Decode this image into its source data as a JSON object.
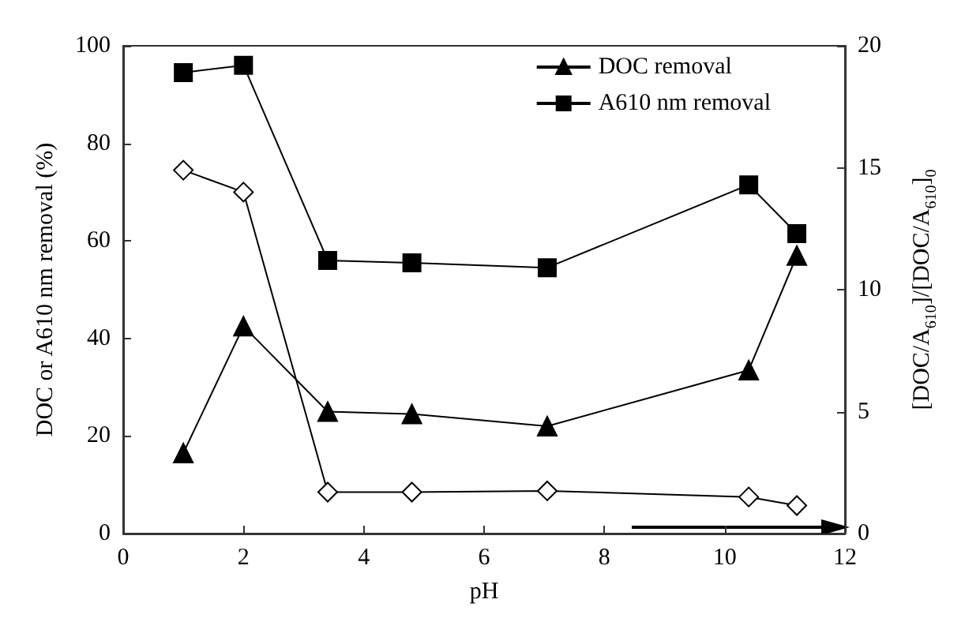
{
  "chart_data": {
    "type": "line",
    "xlabel": "pH",
    "ylabel": "DOC or A610 nm removal (%)",
    "y2label": "[DOC/A$_{610}$]/[DOC/A$_{610}$]$_{0}$",
    "x": [
      1.0,
      2.0,
      3.4,
      4.8,
      7.05,
      10.4,
      11.2
    ],
    "series": [
      {
        "name": "DOC removal",
        "color": "#000000",
        "marker": "triangle",
        "values": [
          16.5,
          42.5,
          25,
          24.5,
          22,
          33.5,
          57
        ]
      },
      {
        "name": "A610 nm removal",
        "color": "#000000",
        "marker": "square",
        "values": [
          94.5,
          96,
          56,
          55.5,
          54.5,
          71.5,
          61.5
        ]
      },
      {
        "color": "#000000",
        "marker": "diamond",
        "axis": "y2",
        "values": [
          14.9,
          14.0,
          1.7,
          1.7,
          1.75,
          1.5,
          1.15
        ]
      }
    ],
    "xlim": [
      0,
      12
    ],
    "xticks": [
      0,
      2,
      4,
      6,
      8,
      10,
      12
    ],
    "ylim": [
      0,
      100
    ],
    "yticks": [
      0,
      20,
      40,
      60,
      80,
      100
    ],
    "y2lim": [
      0,
      20
    ],
    "y2ticks": [
      0,
      5,
      10,
      15,
      20
    ],
    "grid": false,
    "legend": "top right",
    "line_style": "solid"
  }
}
